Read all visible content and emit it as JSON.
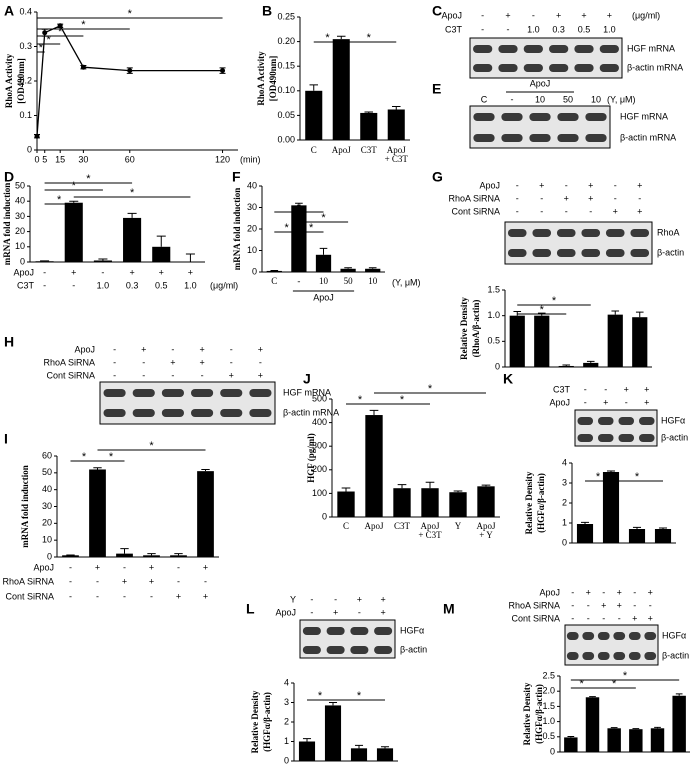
{
  "chart_data": [
    {
      "panel": "A",
      "type": "line",
      "ylabel": [
        "RhoA Activity",
        "[OD490nm]"
      ],
      "xlabel": "(min)",
      "x": [
        0,
        5,
        15,
        30,
        60,
        120
      ],
      "values": [
        0.04,
        0.34,
        0.36,
        0.24,
        0.23,
        0.23
      ],
      "errors": [
        0.005,
        0.01,
        0.005,
        0.005,
        0.008,
        0.008
      ],
      "xlim": [
        0,
        130
      ],
      "xticks": [
        0,
        5,
        15,
        30,
        60,
        120
      ],
      "ylim": [
        0,
        0.4
      ],
      "yticks": [
        0,
        0.1,
        0.2,
        0.3,
        0.4
      ],
      "color": "#000000",
      "brackets": [
        {
          "between": [
            0,
            5
          ],
          "label": "*"
        },
        {
          "between": [
            0,
            4
          ],
          "label": "*"
        },
        {
          "between": [
            0,
            3
          ],
          "label": "*"
        },
        {
          "between": [
            0,
            2
          ],
          "label": "*"
        },
        {
          "between": [
            0,
            1
          ],
          "label": "*"
        }
      ]
    },
    {
      "panel": "B",
      "type": "bar",
      "ylabel": [
        "RhoA Activity",
        "[OD490nm]"
      ],
      "categories": [
        "C",
        "ApoJ",
        "C3T",
        "ApoJ + C3T"
      ],
      "values": [
        0.1,
        0.205,
        0.055,
        0.062
      ],
      "errors": [
        0.012,
        0.006,
        0.002,
        0.006
      ],
      "ylim": [
        0,
        0.25
      ],
      "yticks": [
        {
          "value": 0,
          "label": "0.00"
        },
        0.05,
        {
          "value": 0.1,
          "label": "0.10"
        },
        0.15,
        {
          "value": 0.2,
          "label": "0.20"
        },
        0.25
      ],
      "color": "#000000",
      "brackets": [
        {
          "between": [
            0,
            1
          ],
          "label": "*"
        },
        {
          "between": [
            1,
            3
          ],
          "label": "*"
        }
      ]
    },
    {
      "panel": "C",
      "type": "blot",
      "treatments": [
        {
          "name": "ApoJ",
          "marks": [
            "-",
            "+",
            "-",
            "+",
            "+",
            "+"
          ]
        },
        {
          "name": "C3T",
          "marks": [
            "-",
            "-",
            "1.0",
            "0.3",
            "0.5",
            "1.0"
          ]
        }
      ],
      "unit": "(μg/ml)",
      "bands": [
        "HGF mRNA",
        "β-actin mRNA"
      ]
    },
    {
      "panel": "E",
      "type": "blot",
      "header": [
        "C",
        "-",
        "10",
        "50",
        "10"
      ],
      "unit": "(Y, μM)",
      "group": "ApoJ",
      "bands": [
        "HGF mRNA",
        "β-actin mRNA"
      ]
    },
    {
      "panel": "D",
      "type": "bar",
      "ylabel": [
        "mRNA fold induction"
      ],
      "treatments": [
        {
          "name": "ApoJ",
          "marks": [
            "-",
            "+",
            "-",
            "+",
            "+",
            "+"
          ]
        },
        {
          "name": "C3T",
          "marks": [
            "-",
            "-",
            "1.0",
            "0.3",
            "0.5",
            "1.0"
          ]
        }
      ],
      "unit": "(μg/ml)",
      "values": [
        0.5,
        39,
        1,
        29,
        10,
        0.3
      ],
      "errors": [
        0.2,
        1,
        1,
        3,
        7,
        5
      ],
      "ylim": [
        0,
        50
      ],
      "yticks": [
        0,
        10,
        20,
        30,
        40,
        50
      ],
      "color": "#000000",
      "brackets": [
        {
          "between": [
            0,
            3
          ],
          "label": "*"
        },
        {
          "between": [
            0,
            2
          ],
          "label": "*"
        },
        {
          "between": [
            1,
            5
          ],
          "label": "*"
        },
        {
          "between": [
            0,
            1
          ],
          "label": "*"
        }
      ]
    },
    {
      "panel": "F",
      "type": "bar",
      "ylabel": [
        "mRNA fold induction"
      ],
      "categories": [
        "C",
        "-",
        "10",
        "50",
        "10"
      ],
      "unit": "(Y, μM)",
      "group": "ApoJ",
      "values": [
        0.5,
        31,
        8,
        1.5,
        1.5
      ],
      "errors": [
        0.2,
        1,
        3,
        0.5,
        0.5
      ],
      "ylim": [
        0,
        40
      ],
      "yticks": [
        0,
        10,
        20,
        30,
        40
      ],
      "color": "#000000",
      "brackets": [
        {
          "between": [
            0,
            2
          ],
          "label": "*"
        },
        {
          "between": [
            1,
            3
          ],
          "label": "*"
        },
        {
          "between": [
            0,
            1
          ],
          "label": "*"
        },
        {
          "between": [
            1,
            2
          ],
          "label": "*"
        }
      ]
    },
    {
      "panel": "G",
      "type": "blot",
      "treatments": [
        {
          "name": "ApoJ",
          "marks": [
            "-",
            "+",
            "-",
            "+",
            "-",
            "+"
          ]
        },
        {
          "name": "RhoA SiRNA",
          "marks": [
            "-",
            "-",
            "+",
            "+",
            "-",
            "-"
          ]
        },
        {
          "name": "Cont SiRNA",
          "marks": [
            "-",
            "-",
            "-",
            "-",
            "+",
            "+"
          ]
        }
      ],
      "bands": [
        "RhoA",
        "β-actin"
      ]
    },
    {
      "type": "bar",
      "ylabel": [
        "Relative Density",
        "(RhoA/β-actin)"
      ],
      "values": [
        1,
        1,
        0.02,
        0.08,
        1.02,
        0.97
      ],
      "errors": [
        0.08,
        0.05,
        0.02,
        0.03,
        0.07,
        0.1
      ],
      "ylim": [
        0,
        1.5
      ],
      "yticks": [
        0,
        0.5,
        {
          "value": 1,
          "label": "1.0"
        },
        1.5
      ],
      "color": "#000000",
      "brackets": [
        {
          "between": [
            0,
            3
          ],
          "label": "*"
        },
        {
          "between": [
            0,
            2
          ],
          "label": "*"
        }
      ]
    },
    {
      "panel": "H",
      "type": "blot",
      "treatments": [
        {
          "name": "ApoJ",
          "marks": [
            "-",
            "+",
            "-",
            "+",
            "-",
            "+"
          ]
        },
        {
          "name": "RhoA SiRNA",
          "marks": [
            "-",
            "-",
            "+",
            "+",
            "-",
            "-"
          ]
        },
        {
          "name": "Cont SiRNA",
          "marks": [
            "-",
            "-",
            "-",
            "-",
            "+",
            "+"
          ]
        }
      ],
      "bands": [
        "HGF mRNA",
        "β-actin mRNA"
      ]
    },
    {
      "panel": "I",
      "type": "bar",
      "ylabel": [
        "mRNA fold induction"
      ],
      "treatments": [
        {
          "name": "ApoJ",
          "marks": [
            "-",
            "+",
            "-",
            "+",
            "-",
            "+"
          ]
        },
        {
          "name": "RhoA SiRNA",
          "marks": [
            "-",
            "-",
            "+",
            "+",
            "-",
            "-"
          ]
        },
        {
          "name": "Cont SiRNA",
          "marks": [
            "-",
            "-",
            "-",
            "-",
            "+",
            "+"
          ]
        }
      ],
      "values": [
        1,
        52,
        2,
        1,
        1,
        51
      ],
      "errors": [
        0.2,
        1,
        3,
        1,
        1,
        1
      ],
      "ylim": [
        0,
        60
      ],
      "yticks": [
        0,
        10,
        20,
        30,
        40,
        50,
        60
      ],
      "color": "#000000",
      "brackets": [
        {
          "between": [
            1,
            5
          ],
          "label": "*"
        },
        {
          "between": [
            0,
            1
          ],
          "label": "*"
        },
        {
          "between": [
            1,
            2
          ],
          "label": "*"
        }
      ]
    },
    {
      "panel": "J",
      "type": "bar",
      "ylabel": [
        "HGF (pg/ml)"
      ],
      "categories": [
        "C",
        "ApoJ",
        "C3T",
        "ApoJ + C3T",
        "Y",
        "ApoJ + Y"
      ],
      "values": [
        108,
        432,
        122,
        122,
        105,
        130
      ],
      "errors": [
        15,
        20,
        15,
        25,
        5,
        5
      ],
      "ylim": [
        0,
        500
      ],
      "yticks": [
        0,
        100,
        200,
        300,
        400,
        500
      ],
      "color": "#000000",
      "brackets": [
        {
          "between": [
            1,
            5
          ],
          "label": "*"
        },
        {
          "between": [
            0,
            1
          ],
          "label": "*"
        },
        {
          "between": [
            1,
            3
          ],
          "label": "*"
        }
      ]
    },
    {
      "panel": "K",
      "type": "blot",
      "treatments": [
        {
          "name": "C3T",
          "marks": [
            "-",
            "-",
            "+",
            "+"
          ]
        },
        {
          "name": "ApoJ",
          "marks": [
            "-",
            "+",
            "-",
            "+"
          ]
        }
      ],
      "bands": [
        "HGFα",
        "β-actin"
      ]
    },
    {
      "type": "bar",
      "ylabel": [
        "Relative Density",
        "(HGFα/β-actin)"
      ],
      "values": [
        0.95,
        3.55,
        0.7,
        0.7
      ],
      "errors": [
        0.08,
        0.05,
        0.08,
        0.05
      ],
      "ylim": [
        0,
        4
      ],
      "yticks": [
        0,
        1,
        2,
        3,
        4
      ],
      "color": "#000000",
      "brackets": [
        {
          "between": [
            0,
            1
          ],
          "label": "*"
        },
        {
          "between": [
            1,
            3
          ],
          "label": "*"
        }
      ]
    },
    {
      "panel": "L",
      "type": "blot",
      "treatments": [
        {
          "name": "Y",
          "marks": [
            "-",
            "-",
            "+",
            "+"
          ]
        },
        {
          "name": "ApoJ",
          "marks": [
            "-",
            "+",
            "-",
            "+"
          ]
        }
      ],
      "bands": [
        "HGFα",
        "β-actin"
      ]
    },
    {
      "type": "bar",
      "ylabel": [
        "Relative Density",
        "(HGFα/β-actin)"
      ],
      "values": [
        1,
        2.85,
        0.65,
        0.65
      ],
      "errors": [
        0.15,
        0.15,
        0.15,
        0.08
      ],
      "ylim": [
        0,
        4
      ],
      "yticks": [
        0,
        1,
        2,
        3,
        4
      ],
      "color": "#000000",
      "brackets": [
        {
          "between": [
            0,
            1
          ],
          "label": "*"
        },
        {
          "between": [
            1,
            3
          ],
          "label": "*"
        }
      ]
    },
    {
      "panel": "M",
      "type": "blot",
      "treatments": [
        {
          "name": "ApoJ",
          "marks": [
            "-",
            "+",
            "-",
            "+",
            "-",
            "+"
          ]
        },
        {
          "name": "RhoA SiRNA",
          "marks": [
            "-",
            "-",
            "+",
            "+",
            "-",
            "-"
          ]
        },
        {
          "name": "Cont SiRNA",
          "marks": [
            "-",
            "-",
            "-",
            "-",
            "+",
            "+"
          ]
        }
      ],
      "bands": [
        "HGFα",
        "β-actin"
      ]
    },
    {
      "type": "bar",
      "ylabel": [
        "Relative Density",
        "(HGFα/β-actin)"
      ],
      "values": [
        0.48,
        1.8,
        0.78,
        0.75,
        0.78,
        1.85
      ],
      "errors": [
        0.03,
        0.02,
        0.02,
        0.02,
        0.03,
        0.06
      ],
      "ylim": [
        0,
        2.5
      ],
      "yticks": [
        0,
        0.5,
        {
          "value": 1,
          "label": "1.0"
        },
        1.5,
        {
          "value": 2,
          "label": "2.0"
        },
        2.5
      ],
      "color": "#000000",
      "brackets": [
        {
          "between": [
            0,
            5
          ],
          "label": "*"
        },
        {
          "between": [
            0,
            1
          ],
          "label": "*"
        },
        {
          "between": [
            1,
            3
          ],
          "label": "*"
        }
      ]
    }
  ]
}
